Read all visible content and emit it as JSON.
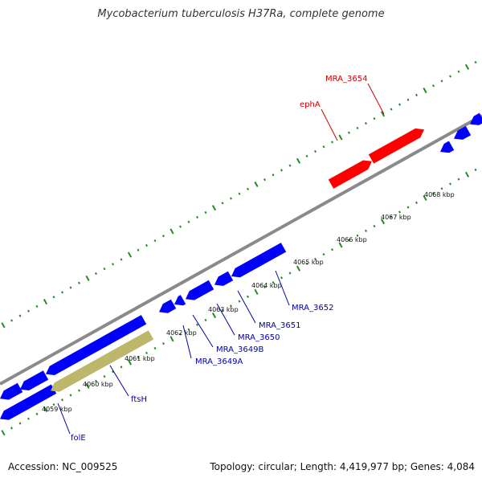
{
  "title": "Mycobacterium tuberculosis H37Ra, complete genome",
  "footer": {
    "accession": "Accession: NC_009525",
    "summary": "Topology: circular; Length: 4,419,977 bp; Genes: 4,084"
  },
  "colors": {
    "forward_gene": "#ff0000",
    "reverse_gene": "#0000ff",
    "highlight_gene": "#bdb76b",
    "backbone": "#888888",
    "tick": "#228b22",
    "forward_label": "#cc0000",
    "reverse_label": "#0000aa"
  },
  "ticks": [
    {
      "label": "4059 kbp"
    },
    {
      "label": "4060 kbp"
    },
    {
      "label": "4061 kbp"
    },
    {
      "label": "4062 kbp"
    },
    {
      "label": "4063 kbp"
    },
    {
      "label": "4064 kbp"
    },
    {
      "label": "4065 kbp"
    },
    {
      "label": "4066 kbp"
    },
    {
      "label": "4067 kbp"
    },
    {
      "label": "4068 kbp"
    }
  ],
  "gene_labels": [
    {
      "text": "MRA_3654",
      "strand": "forward"
    },
    {
      "text": "ephA",
      "strand": "forward"
    },
    {
      "text": "MRA_3652",
      "strand": "reverse"
    },
    {
      "text": "MRA_3651",
      "strand": "reverse"
    },
    {
      "text": "MRA_3650",
      "strand": "reverse"
    },
    {
      "text": "MRA_3649B",
      "strand": "reverse"
    },
    {
      "text": "MRA_3649A",
      "strand": "reverse"
    },
    {
      "text": "ftsH",
      "strand": "reverse"
    },
    {
      "text": "folE",
      "strand": "reverse"
    }
  ]
}
